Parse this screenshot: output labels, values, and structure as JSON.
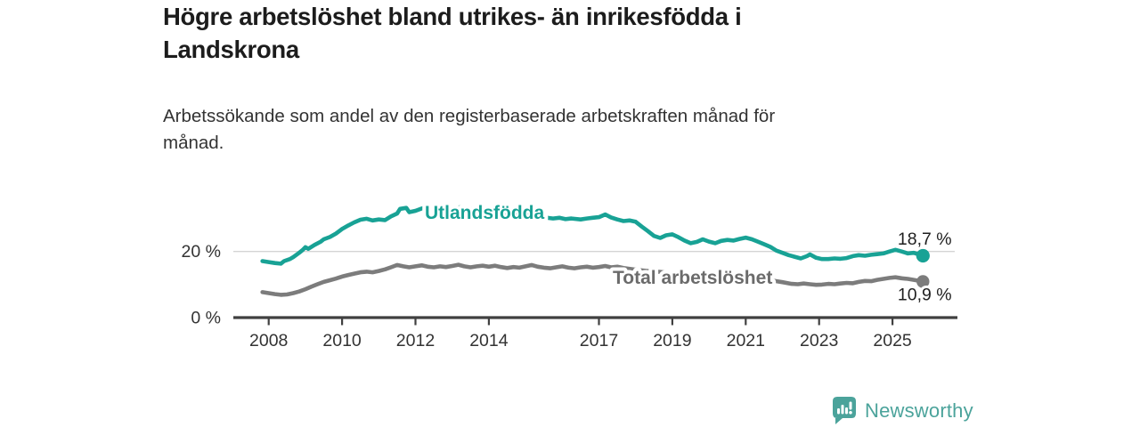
{
  "header": {
    "title": "Högre arbetslöshet bland utrikes- än inrikesfödda i Landskrona",
    "subtitle": "Arbetssökande som andel av den registerbaserade arbetskraften månad för månad."
  },
  "chart_data": {
    "type": "line",
    "unit": "%",
    "x_range": [
      2007.8,
      2026.2
    ],
    "ylim": [
      0,
      36
    ],
    "grid": "single-gridline-at-20",
    "legend_position": "inline-labels-on-lines",
    "y_axis": {
      "ticks": [
        {
          "label": "0 %",
          "value": 0,
          "gridline": false
        },
        {
          "label": "20 %",
          "value": 20,
          "gridline": true
        }
      ]
    },
    "x_axis": {
      "ticks": [
        {
          "label": "2008",
          "value": 2008
        },
        {
          "label": "2010",
          "value": 2010
        },
        {
          "label": "2012",
          "value": 2012
        },
        {
          "label": "2014",
          "value": 2014
        },
        {
          "label": "2017",
          "value": 2017
        },
        {
          "label": "2019",
          "value": 2019
        },
        {
          "label": "2021",
          "value": 2021
        },
        {
          "label": "2023",
          "value": 2023
        },
        {
          "label": "2025",
          "value": 2025
        }
      ]
    },
    "series": [
      {
        "name": "Utlandsfödda",
        "color": "#18A295",
        "end_label": "18,7 %",
        "end_value": 18.7,
        "points": [
          [
            2007.83,
            17.1
          ],
          [
            2008,
            16.8
          ],
          [
            2008.17,
            16.5
          ],
          [
            2008.33,
            16.3
          ],
          [
            2008.42,
            17.1
          ],
          [
            2008.58,
            17.7
          ],
          [
            2008.67,
            18.3
          ],
          [
            2008.83,
            19.6
          ],
          [
            2008.92,
            20.4
          ],
          [
            2009,
            21.3
          ],
          [
            2009.08,
            20.8
          ],
          [
            2009.25,
            22
          ],
          [
            2009.42,
            23
          ],
          [
            2009.5,
            23.7
          ],
          [
            2009.67,
            24.4
          ],
          [
            2009.83,
            25.4
          ],
          [
            2010,
            26.8
          ],
          [
            2010.17,
            27.9
          ],
          [
            2010.33,
            28.8
          ],
          [
            2010.5,
            29.6
          ],
          [
            2010.67,
            29.9
          ],
          [
            2010.83,
            29.4
          ],
          [
            2011,
            29.7
          ],
          [
            2011.17,
            29.5
          ],
          [
            2011.33,
            30.6
          ],
          [
            2011.5,
            31.5
          ],
          [
            2011.58,
            32.9
          ],
          [
            2011.75,
            33.2
          ],
          [
            2011.83,
            31.9
          ],
          [
            2012,
            32.3
          ],
          [
            2012.17,
            33
          ],
          [
            2012.33,
            33.5
          ],
          [
            2012.5,
            32.5
          ],
          [
            2012.67,
            32.9
          ],
          [
            2012.83,
            33.3
          ],
          [
            2013,
            33.1
          ],
          [
            2013.25,
            33.4
          ],
          [
            2013.5,
            33
          ],
          [
            2013.75,
            32.7
          ],
          [
            2014,
            32.4
          ],
          [
            2014.25,
            32.1
          ],
          [
            2014.5,
            31.8
          ],
          [
            2014.75,
            31.5
          ],
          [
            2015,
            31.2
          ],
          [
            2015.25,
            30.8
          ],
          [
            2015.5,
            30.3
          ],
          [
            2015.75,
            30
          ],
          [
            2015.92,
            30.2
          ],
          [
            2016.08,
            29.8
          ],
          [
            2016.25,
            30
          ],
          [
            2016.5,
            29.7
          ],
          [
            2016.67,
            30
          ],
          [
            2016.83,
            30.2
          ],
          [
            2017,
            30.4
          ],
          [
            2017.17,
            31.2
          ],
          [
            2017.33,
            30.3
          ],
          [
            2017.5,
            29.7
          ],
          [
            2017.67,
            29.2
          ],
          [
            2017.83,
            29.4
          ],
          [
            2018,
            29
          ],
          [
            2018.17,
            27.5
          ],
          [
            2018.33,
            26.2
          ],
          [
            2018.5,
            24.7
          ],
          [
            2018.67,
            24.1
          ],
          [
            2018.83,
            24.9
          ],
          [
            2019,
            25.2
          ],
          [
            2019.17,
            24.3
          ],
          [
            2019.33,
            23.3
          ],
          [
            2019.5,
            22.5
          ],
          [
            2019.67,
            22.9
          ],
          [
            2019.83,
            23.7
          ],
          [
            2020,
            23
          ],
          [
            2020.17,
            22.5
          ],
          [
            2020.33,
            23.2
          ],
          [
            2020.5,
            23.5
          ],
          [
            2020.67,
            23.3
          ],
          [
            2020.83,
            23.8
          ],
          [
            2021,
            24.2
          ],
          [
            2021.17,
            23.7
          ],
          [
            2021.33,
            23
          ],
          [
            2021.5,
            22.2
          ],
          [
            2021.67,
            21.4
          ],
          [
            2021.83,
            20.3
          ],
          [
            2022,
            19.6
          ],
          [
            2022.17,
            18.9
          ],
          [
            2022.33,
            18.4
          ],
          [
            2022.5,
            17.9
          ],
          [
            2022.67,
            18.6
          ],
          [
            2022.75,
            19.1
          ],
          [
            2022.92,
            18.1
          ],
          [
            2023.08,
            17.7
          ],
          [
            2023.25,
            17.7
          ],
          [
            2023.42,
            17.9
          ],
          [
            2023.58,
            17.8
          ],
          [
            2023.75,
            18
          ],
          [
            2023.92,
            18.6
          ],
          [
            2024.08,
            18.9
          ],
          [
            2024.25,
            18.7
          ],
          [
            2024.42,
            19
          ],
          [
            2024.58,
            19.2
          ],
          [
            2024.75,
            19.4
          ],
          [
            2024.92,
            20
          ],
          [
            2025.08,
            20.5
          ],
          [
            2025.25,
            20
          ],
          [
            2025.42,
            19.4
          ],
          [
            2025.58,
            19.6
          ],
          [
            2025.83,
            18.7
          ]
        ]
      },
      {
        "name": "Total arbetslöshet",
        "color": "#7C7C7C",
        "end_label": "10,9 %",
        "end_value": 10.9,
        "points": [
          [
            2007.83,
            7.7
          ],
          [
            2008,
            7.4
          ],
          [
            2008.17,
            7.1
          ],
          [
            2008.33,
            6.9
          ],
          [
            2008.5,
            7
          ],
          [
            2008.67,
            7.4
          ],
          [
            2008.83,
            7.9
          ],
          [
            2009,
            8.6
          ],
          [
            2009.17,
            9.4
          ],
          [
            2009.33,
            10.1
          ],
          [
            2009.5,
            10.8
          ],
          [
            2009.67,
            11.3
          ],
          [
            2009.83,
            11.8
          ],
          [
            2010,
            12.4
          ],
          [
            2010.17,
            12.9
          ],
          [
            2010.33,
            13.3
          ],
          [
            2010.5,
            13.7
          ],
          [
            2010.67,
            13.9
          ],
          [
            2010.83,
            13.7
          ],
          [
            2011,
            14.1
          ],
          [
            2011.17,
            14.6
          ],
          [
            2011.33,
            15.2
          ],
          [
            2011.5,
            15.9
          ],
          [
            2011.67,
            15.5
          ],
          [
            2011.83,
            15.2
          ],
          [
            2012,
            15.5
          ],
          [
            2012.17,
            15.8
          ],
          [
            2012.33,
            15.4
          ],
          [
            2012.5,
            15.2
          ],
          [
            2012.67,
            15.5
          ],
          [
            2012.83,
            15.3
          ],
          [
            2013,
            15.6
          ],
          [
            2013.17,
            16
          ],
          [
            2013.33,
            15.5
          ],
          [
            2013.5,
            15.2
          ],
          [
            2013.67,
            15.5
          ],
          [
            2013.83,
            15.7
          ],
          [
            2014,
            15.4
          ],
          [
            2014.17,
            15.7
          ],
          [
            2014.33,
            15.3
          ],
          [
            2014.5,
            15
          ],
          [
            2014.67,
            15.3
          ],
          [
            2014.83,
            15.1
          ],
          [
            2015,
            15.5
          ],
          [
            2015.17,
            15.9
          ],
          [
            2015.33,
            15.4
          ],
          [
            2015.5,
            15.1
          ],
          [
            2015.67,
            14.9
          ],
          [
            2015.83,
            15.2
          ],
          [
            2016,
            15.5
          ],
          [
            2016.17,
            15.1
          ],
          [
            2016.33,
            14.9
          ],
          [
            2016.5,
            15.2
          ],
          [
            2016.67,
            15.4
          ],
          [
            2016.83,
            15.1
          ],
          [
            2017,
            15.3
          ],
          [
            2017.17,
            15.6
          ],
          [
            2017.33,
            15.2
          ],
          [
            2017.5,
            15.4
          ],
          [
            2017.67,
            15
          ],
          [
            2018,
            14.5
          ],
          [
            2018.33,
            14.1
          ],
          [
            2018.67,
            13.8
          ],
          [
            2019,
            13.4
          ],
          [
            2019.33,
            13
          ],
          [
            2019.67,
            12.8
          ],
          [
            2020,
            12.9
          ],
          [
            2020.33,
            13.3
          ],
          [
            2020.67,
            13
          ],
          [
            2021,
            12.5
          ],
          [
            2021.33,
            11.9
          ],
          [
            2021.67,
            11.3
          ],
          [
            2022,
            10.7
          ],
          [
            2022.25,
            10.2
          ],
          [
            2022.42,
            10.1
          ],
          [
            2022.58,
            10.3
          ],
          [
            2022.75,
            10.1
          ],
          [
            2022.92,
            9.9
          ],
          [
            2023.08,
            10
          ],
          [
            2023.25,
            10.2
          ],
          [
            2023.42,
            10.1
          ],
          [
            2023.58,
            10.3
          ],
          [
            2023.75,
            10.5
          ],
          [
            2023.92,
            10.4
          ],
          [
            2024.08,
            10.8
          ],
          [
            2024.25,
            11.1
          ],
          [
            2024.42,
            11
          ],
          [
            2024.58,
            11.4
          ],
          [
            2024.75,
            11.7
          ],
          [
            2024.92,
            12
          ],
          [
            2025.08,
            12.2
          ],
          [
            2025.25,
            11.9
          ],
          [
            2025.42,
            11.7
          ],
          [
            2025.58,
            11.4
          ],
          [
            2025.83,
            10.9
          ]
        ]
      }
    ]
  },
  "footer": {
    "brand": "Newsworthy",
    "brand_color": "#4BA39B"
  }
}
